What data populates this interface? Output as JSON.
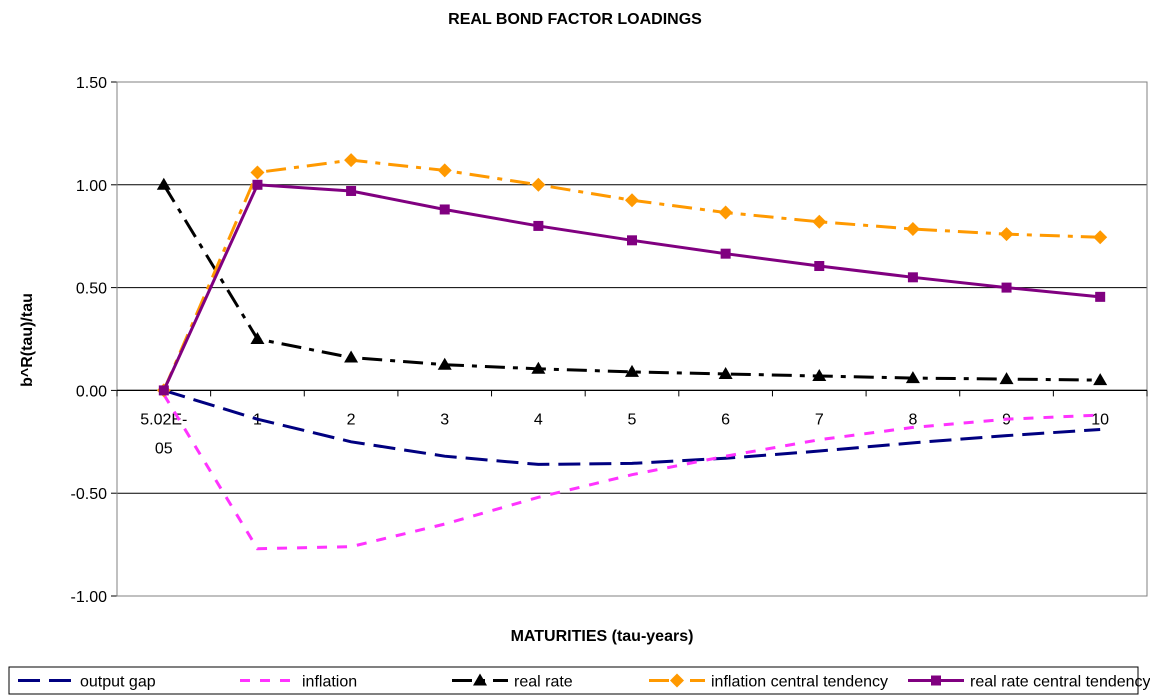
{
  "chart_data": {
    "type": "line",
    "title": "REAL BOND FACTOR LOADINGS",
    "xlabel": "MATURITIES (tau-years)",
    "ylabel": "b^R(tau)/tau",
    "categories": [
      "5.02E-05",
      "1",
      "2",
      "3",
      "4",
      "5",
      "6",
      "7",
      "8",
      "9",
      "10"
    ],
    "ylim": [
      -1.0,
      1.5
    ],
    "yticks": [
      "-1.00",
      "-0.50",
      "0.00",
      "0.50",
      "1.00",
      "1.50"
    ],
    "grid": true,
    "legend_position": "bottom",
    "series": [
      {
        "name": "output gap",
        "color": "#000080",
        "dash": "long-dash",
        "marker": "none",
        "values": [
          0.0,
          -0.14,
          -0.25,
          -0.32,
          -0.36,
          -0.355,
          -0.33,
          -0.295,
          -0.255,
          -0.22,
          -0.19
        ]
      },
      {
        "name": "inflation",
        "color": "#ff33ff",
        "dash": "dash",
        "marker": "none",
        "values": [
          -0.02,
          -0.77,
          -0.76,
          -0.65,
          -0.52,
          -0.41,
          -0.32,
          -0.24,
          -0.18,
          -0.14,
          -0.12
        ]
      },
      {
        "name": "real rate",
        "color": "#000000",
        "dash": "dash-dot",
        "marker": "triangle",
        "values": [
          1.0,
          0.25,
          0.16,
          0.125,
          0.105,
          0.09,
          0.08,
          0.07,
          0.06,
          0.055,
          0.05
        ]
      },
      {
        "name": "inflation central tendency",
        "color": "#ff9900",
        "dash": "dash-dot",
        "marker": "diamond",
        "values": [
          0.0,
          1.06,
          1.12,
          1.07,
          1.0,
          0.925,
          0.865,
          0.82,
          0.785,
          0.76,
          0.745
        ]
      },
      {
        "name": "real rate central tendency",
        "color": "#800080",
        "dash": "solid",
        "marker": "square",
        "values": [
          0.0,
          1.0,
          0.97,
          0.88,
          0.8,
          0.73,
          0.665,
          0.605,
          0.55,
          0.5,
          0.455
        ]
      }
    ]
  }
}
